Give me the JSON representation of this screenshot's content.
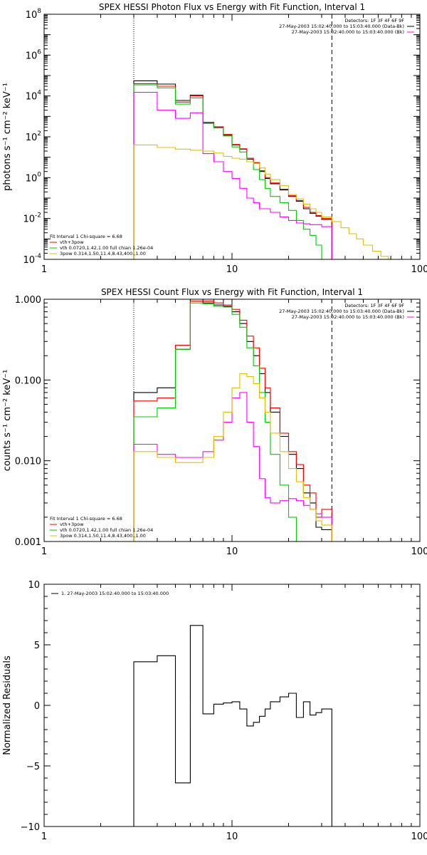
{
  "chart_data": [
    {
      "type": "line",
      "title": "SPEX HESSI Photon Flux vs Energy with Fit Function, Interval 1",
      "ylabel": "photons s⁻¹ cm⁻² keV⁻¹",
      "xscale": "log",
      "yscale": "log",
      "xlim": [
        1,
        100
      ],
      "ylim": [
        0.0001,
        100000000
      ],
      "x_tick_labels": [
        "1",
        "10",
        "100"
      ],
      "y_tick_labels": [
        "10^8",
        "10^6",
        "10^4",
        "10^2",
        "10^0",
        "10^-2",
        "10^-4"
      ],
      "vlines": [
        {
          "x": 3,
          "style": "dotted"
        },
        {
          "x": 34,
          "style": "dashed"
        }
      ],
      "info_lines": [
        "Detectors: 1F 3F 4F 6F 9F",
        "27-May-2003 15:02:40.000 to 15:03:40.000 (Data-Bk)",
        "27-May-2003 15:02:40.000 to 15:03:40.000 (Bk)"
      ],
      "fit_labels": [
        "Fit Interval 1   Chi-square = 6.68",
        "vth+3pow",
        "vth 0.0720,1.42,1.00  full chian 1.26e-04",
        "3pow 0.314,1.50,11.4,8.43,400.,1.00"
      ],
      "series": [
        {
          "color": "#000000",
          "steps": [
            [
              3,
              55000
            ],
            [
              4,
              38000
            ],
            [
              5,
              6000
            ],
            [
              6,
              11000
            ],
            [
              7,
              500
            ],
            [
              8,
              300
            ],
            [
              9,
              120
            ],
            [
              10,
              40
            ],
            [
              11,
              25
            ],
            [
              12,
              8
            ],
            [
              13,
              5
            ],
            [
              14,
              2
            ],
            [
              15,
              0.9
            ],
            [
              16,
              0.5
            ],
            [
              18,
              0.25
            ],
            [
              20,
              0.12
            ],
            [
              22,
              0.07
            ],
            [
              24,
              0.03
            ],
            [
              26,
              0.018
            ],
            [
              28,
              0.013
            ],
            [
              30,
              0.009
            ],
            [
              34,
              0.009
            ]
          ]
        },
        {
          "color": "#ff0000",
          "steps": [
            [
              3,
              40000
            ],
            [
              4,
              30000
            ],
            [
              5,
              5000
            ],
            [
              6,
              10000
            ],
            [
              7,
              520
            ],
            [
              8,
              310
            ],
            [
              9,
              130
            ],
            [
              10,
              42
            ],
            [
              11,
              26
            ],
            [
              12,
              9
            ],
            [
              13,
              5.5
            ],
            [
              14,
              2.2
            ],
            [
              15,
              1.0
            ],
            [
              16,
              0.55
            ],
            [
              18,
              0.27
            ],
            [
              20,
              0.13
            ],
            [
              22,
              0.075
            ],
            [
              24,
              0.035
            ],
            [
              26,
              0.02
            ],
            [
              28,
              0.014
            ],
            [
              30,
              0.01
            ],
            [
              34,
              0.01
            ]
          ]
        },
        {
          "color": "#00cc00",
          "steps": [
            [
              3,
              35000
            ],
            [
              4,
              25000
            ],
            [
              5,
              4000
            ],
            [
              6,
              8000
            ],
            [
              7,
              450
            ],
            [
              8,
              270
            ],
            [
              9,
              110
            ],
            [
              10,
              32
            ],
            [
              11,
              18
            ],
            [
              12,
              6
            ],
            [
              13,
              2.5
            ],
            [
              14,
              0.8
            ],
            [
              15,
              0.3
            ],
            [
              16,
              0.12
            ],
            [
              18,
              0.06
            ],
            [
              20,
              0.025
            ],
            [
              22,
              0.008
            ],
            [
              24,
              0.003
            ],
            [
              26,
              0.0015
            ],
            [
              28,
              0.0005
            ],
            [
              30,
              0.0001
            ]
          ]
        },
        {
          "color": "#ff00ff",
          "steps": [
            [
              3,
              15000
            ],
            [
              4,
              2000
            ],
            [
              5,
              800
            ],
            [
              6,
              1500
            ],
            [
              7,
              15
            ],
            [
              8,
              6
            ],
            [
              9,
              2
            ],
            [
              10,
              0.9
            ],
            [
              11,
              0.3
            ],
            [
              12,
              0.1
            ],
            [
              13,
              0.06
            ],
            [
              14,
              0.03
            ],
            [
              16,
              0.02
            ],
            [
              18,
              0.012
            ],
            [
              20,
              0.008
            ],
            [
              22,
              0.006
            ],
            [
              24,
              0.0055
            ],
            [
              26,
              0.005
            ],
            [
              28,
              0.005
            ],
            [
              30,
              0.004
            ],
            [
              34,
              0.004
            ]
          ]
        },
        {
          "color": "#e0c000",
          "steps": [
            [
              3,
              40
            ],
            [
              4,
              30
            ],
            [
              5,
              25
            ],
            [
              6,
              22
            ],
            [
              7,
              20
            ],
            [
              8,
              16
            ],
            [
              9,
              11
            ],
            [
              10,
              9
            ],
            [
              11,
              8
            ],
            [
              12,
              6
            ],
            [
              13,
              5
            ],
            [
              14,
              3
            ],
            [
              15,
              1.5
            ],
            [
              16,
              0.8
            ],
            [
              18,
              0.4
            ],
            [
              20,
              0.15
            ],
            [
              22,
              0.09
            ],
            [
              24,
              0.05
            ],
            [
              26,
              0.03
            ],
            [
              28,
              0.02
            ],
            [
              30,
              0.012
            ],
            [
              34,
              0.007
            ],
            [
              38,
              0.0035
            ],
            [
              42,
              0.0018
            ],
            [
              46,
              0.001
            ],
            [
              50,
              0.0005
            ],
            [
              56,
              0.00025
            ],
            [
              62,
              0.00014
            ],
            [
              68,
              9e-05
            ]
          ]
        }
      ]
    },
    {
      "type": "line",
      "title": "SPEX HESSI Count Flux vs Energy with Fit Function, Interval 1",
      "ylabel": "counts s⁻¹ cm⁻² keV⁻¹",
      "xscale": "log",
      "yscale": "log",
      "xlim": [
        1,
        100
      ],
      "ylim": [
        0.001,
        1.0
      ],
      "x_tick_labels": [
        "1",
        "10",
        "100"
      ],
      "y_tick_labels": [
        "1.000",
        "0.100",
        "0.010",
        "0.001"
      ],
      "vlines": [
        {
          "x": 3,
          "style": "dotted"
        },
        {
          "x": 34,
          "style": "dashed"
        }
      ],
      "info_lines": [
        "Detectors: 1F 3F 4F 6F 9F",
        "27-May-2003 15:02:40.000 to 15:03:40.000 (Data-Bk)",
        "27-May-2003 15:02:40.000 to 15:03:40.000 (Bk)"
      ],
      "fit_labels": [
        "Fit Interval 1   Chi-square = 6.68",
        "vth+3pow",
        "vth 0.0720,1.42,1.00  full chian 1.26e-04",
        "3pow 0.314,1.50,11.4,8.43,400.,1.00"
      ],
      "series": [
        {
          "color": "#000000",
          "steps": [
            [
              3,
              0.07
            ],
            [
              4,
              0.08
            ],
            [
              5,
              0.24
            ],
            [
              6,
              1.0
            ],
            [
              7,
              0.9
            ],
            [
              8,
              0.85
            ],
            [
              9,
              0.82
            ],
            [
              10,
              0.7
            ],
            [
              11,
              0.5
            ],
            [
              12,
              0.3
            ],
            [
              13,
              0.2
            ],
            [
              14,
              0.12
            ],
            [
              15,
              0.07
            ],
            [
              16,
              0.04
            ],
            [
              18,
              0.02
            ],
            [
              20,
              0.012
            ],
            [
              22,
              0.008
            ],
            [
              24,
              0.004
            ],
            [
              26,
              0.003
            ],
            [
              28,
              0.0015
            ],
            [
              30,
              0.0014
            ],
            [
              34,
              0.0014
            ]
          ]
        },
        {
          "color": "#ff0000",
          "steps": [
            [
              3,
              0.055
            ],
            [
              4,
              0.06
            ],
            [
              5,
              0.27
            ],
            [
              6,
              0.95
            ],
            [
              7,
              0.95
            ],
            [
              8,
              0.9
            ],
            [
              9,
              0.85
            ],
            [
              10,
              0.75
            ],
            [
              11,
              0.55
            ],
            [
              12,
              0.35
            ],
            [
              13,
              0.25
            ],
            [
              14,
              0.14
            ],
            [
              15,
              0.08
            ],
            [
              16,
              0.045
            ],
            [
              18,
              0.022
            ],
            [
              20,
              0.013
            ],
            [
              22,
              0.009
            ],
            [
              24,
              0.005
            ],
            [
              26,
              0.004
            ],
            [
              28,
              0.002
            ],
            [
              30,
              0.0025
            ],
            [
              34,
              0.0025
            ]
          ]
        },
        {
          "color": "#00cc00",
          "steps": [
            [
              3,
              0.035
            ],
            [
              4,
              0.045
            ],
            [
              5,
              0.24
            ],
            [
              6,
              0.9
            ],
            [
              7,
              0.88
            ],
            [
              8,
              0.82
            ],
            [
              9,
              0.8
            ],
            [
              10,
              0.65
            ],
            [
              11,
              0.45
            ],
            [
              12,
              0.25
            ],
            [
              13,
              0.15
            ],
            [
              14,
              0.07
            ],
            [
              15,
              0.03
            ],
            [
              16,
              0.012
            ],
            [
              18,
              0.005
            ],
            [
              20,
              0.002
            ],
            [
              22,
              0.001
            ]
          ]
        },
        {
          "color": "#ff00ff",
          "steps": [
            [
              3,
              0.016
            ],
            [
              4,
              0.012
            ],
            [
              5,
              0.011
            ],
            [
              6,
              0.011
            ],
            [
              7,
              0.013
            ],
            [
              8,
              0.018
            ],
            [
              9,
              0.03
            ],
            [
              10,
              0.06
            ],
            [
              11,
              0.07
            ],
            [
              12,
              0.03
            ],
            [
              13,
              0.015
            ],
            [
              14,
              0.006
            ],
            [
              15,
              0.0035
            ],
            [
              16,
              0.003
            ],
            [
              18,
              0.0032
            ],
            [
              20,
              0.0034
            ],
            [
              22,
              0.0032
            ],
            [
              24,
              0.0028
            ],
            [
              26,
              0.0025
            ],
            [
              28,
              0.0022
            ],
            [
              30,
              0.002
            ],
            [
              34,
              0.002
            ]
          ]
        },
        {
          "color": "#e0c000",
          "steps": [
            [
              3,
              0.013
            ],
            [
              4,
              0.011
            ],
            [
              5,
              0.0095
            ],
            [
              6,
              0.0095
            ],
            [
              7,
              0.011
            ],
            [
              8,
              0.02
            ],
            [
              9,
              0.04
            ],
            [
              10,
              0.08
            ],
            [
              11,
              0.12
            ],
            [
              12,
              0.11
            ],
            [
              13,
              0.09
            ],
            [
              14,
              0.06
            ],
            [
              15,
              0.04
            ],
            [
              16,
              0.022
            ],
            [
              18,
              0.013
            ],
            [
              20,
              0.008
            ],
            [
              22,
              0.0055
            ],
            [
              24,
              0.0035
            ],
            [
              26,
              0.0025
            ],
            [
              28,
              0.0018
            ],
            [
              30,
              0.0016
            ],
            [
              34,
              0.0016
            ]
          ]
        }
      ]
    },
    {
      "type": "line",
      "ylabel": "Normalized Residuals",
      "xscale": "log",
      "xlim": [
        1,
        100
      ],
      "ylim": [
        -10,
        10
      ],
      "x_tick_labels": [
        "1",
        "10",
        "100"
      ],
      "y_tick_labels": [
        "10",
        "5",
        "0",
        "-5",
        "-10"
      ],
      "legend": "1. 27-May-2003 15:02:40.000 to 15:03:40.000",
      "series": [
        {
          "color": "#000000",
          "steps": [
            [
              3,
              3.6
            ],
            [
              4,
              4.1
            ],
            [
              5,
              -6.4
            ],
            [
              6,
              6.6
            ],
            [
              7,
              -0.7
            ],
            [
              8,
              0.1
            ],
            [
              9,
              0.2
            ],
            [
              10,
              0.3
            ],
            [
              11,
              -0.3
            ],
            [
              12,
              -1.7
            ],
            [
              13,
              -1.4
            ],
            [
              14,
              -0.9
            ],
            [
              15,
              -0.3
            ],
            [
              16,
              0.3
            ],
            [
              18,
              0.7
            ],
            [
              20,
              1.0
            ],
            [
              22,
              -1.0
            ],
            [
              24,
              0.3
            ],
            [
              26,
              -0.8
            ],
            [
              28,
              -0.6
            ],
            [
              30,
              -0.3
            ],
            [
              34,
              -0.3
            ]
          ]
        }
      ]
    }
  ]
}
